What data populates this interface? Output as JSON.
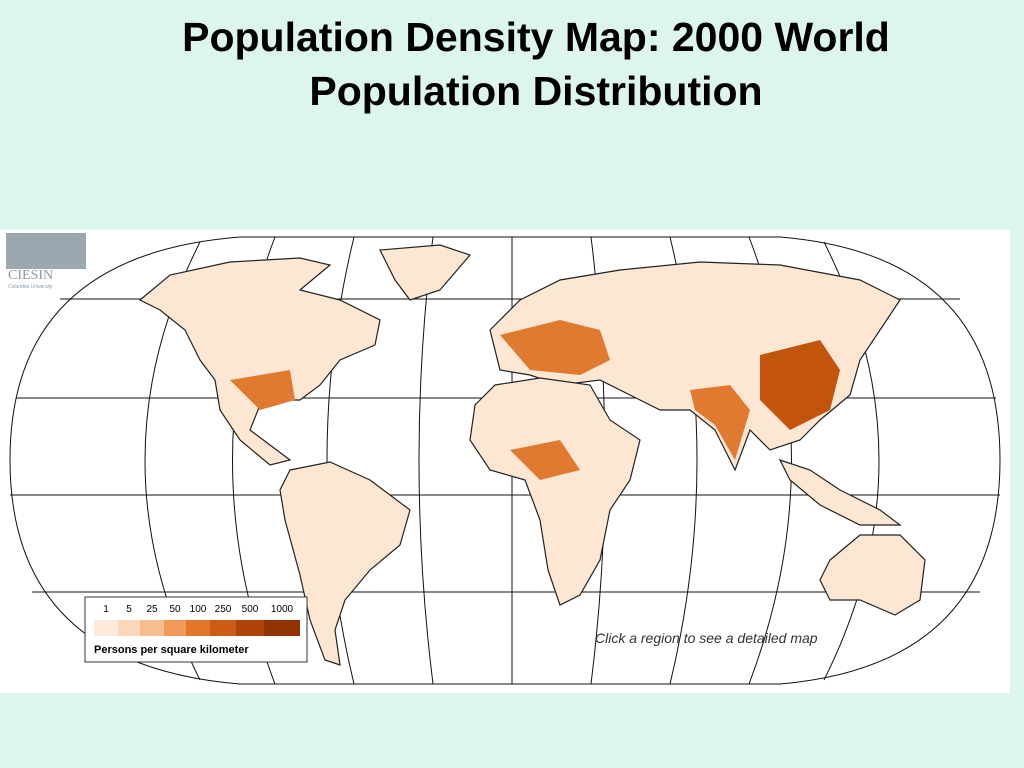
{
  "header": {
    "title_lines": [
      "Population Density Map:  2000 World",
      "Population Distribution"
    ]
  },
  "map": {
    "logo": {
      "name": "CIESIN",
      "subtitle": "Columbia University"
    },
    "legend": {
      "ticks": [
        1,
        5,
        25,
        50,
        100,
        250,
        500,
        1000
      ],
      "label": "Persons per square kilometer"
    },
    "instruction": "Click a region to see a detailed map"
  }
}
